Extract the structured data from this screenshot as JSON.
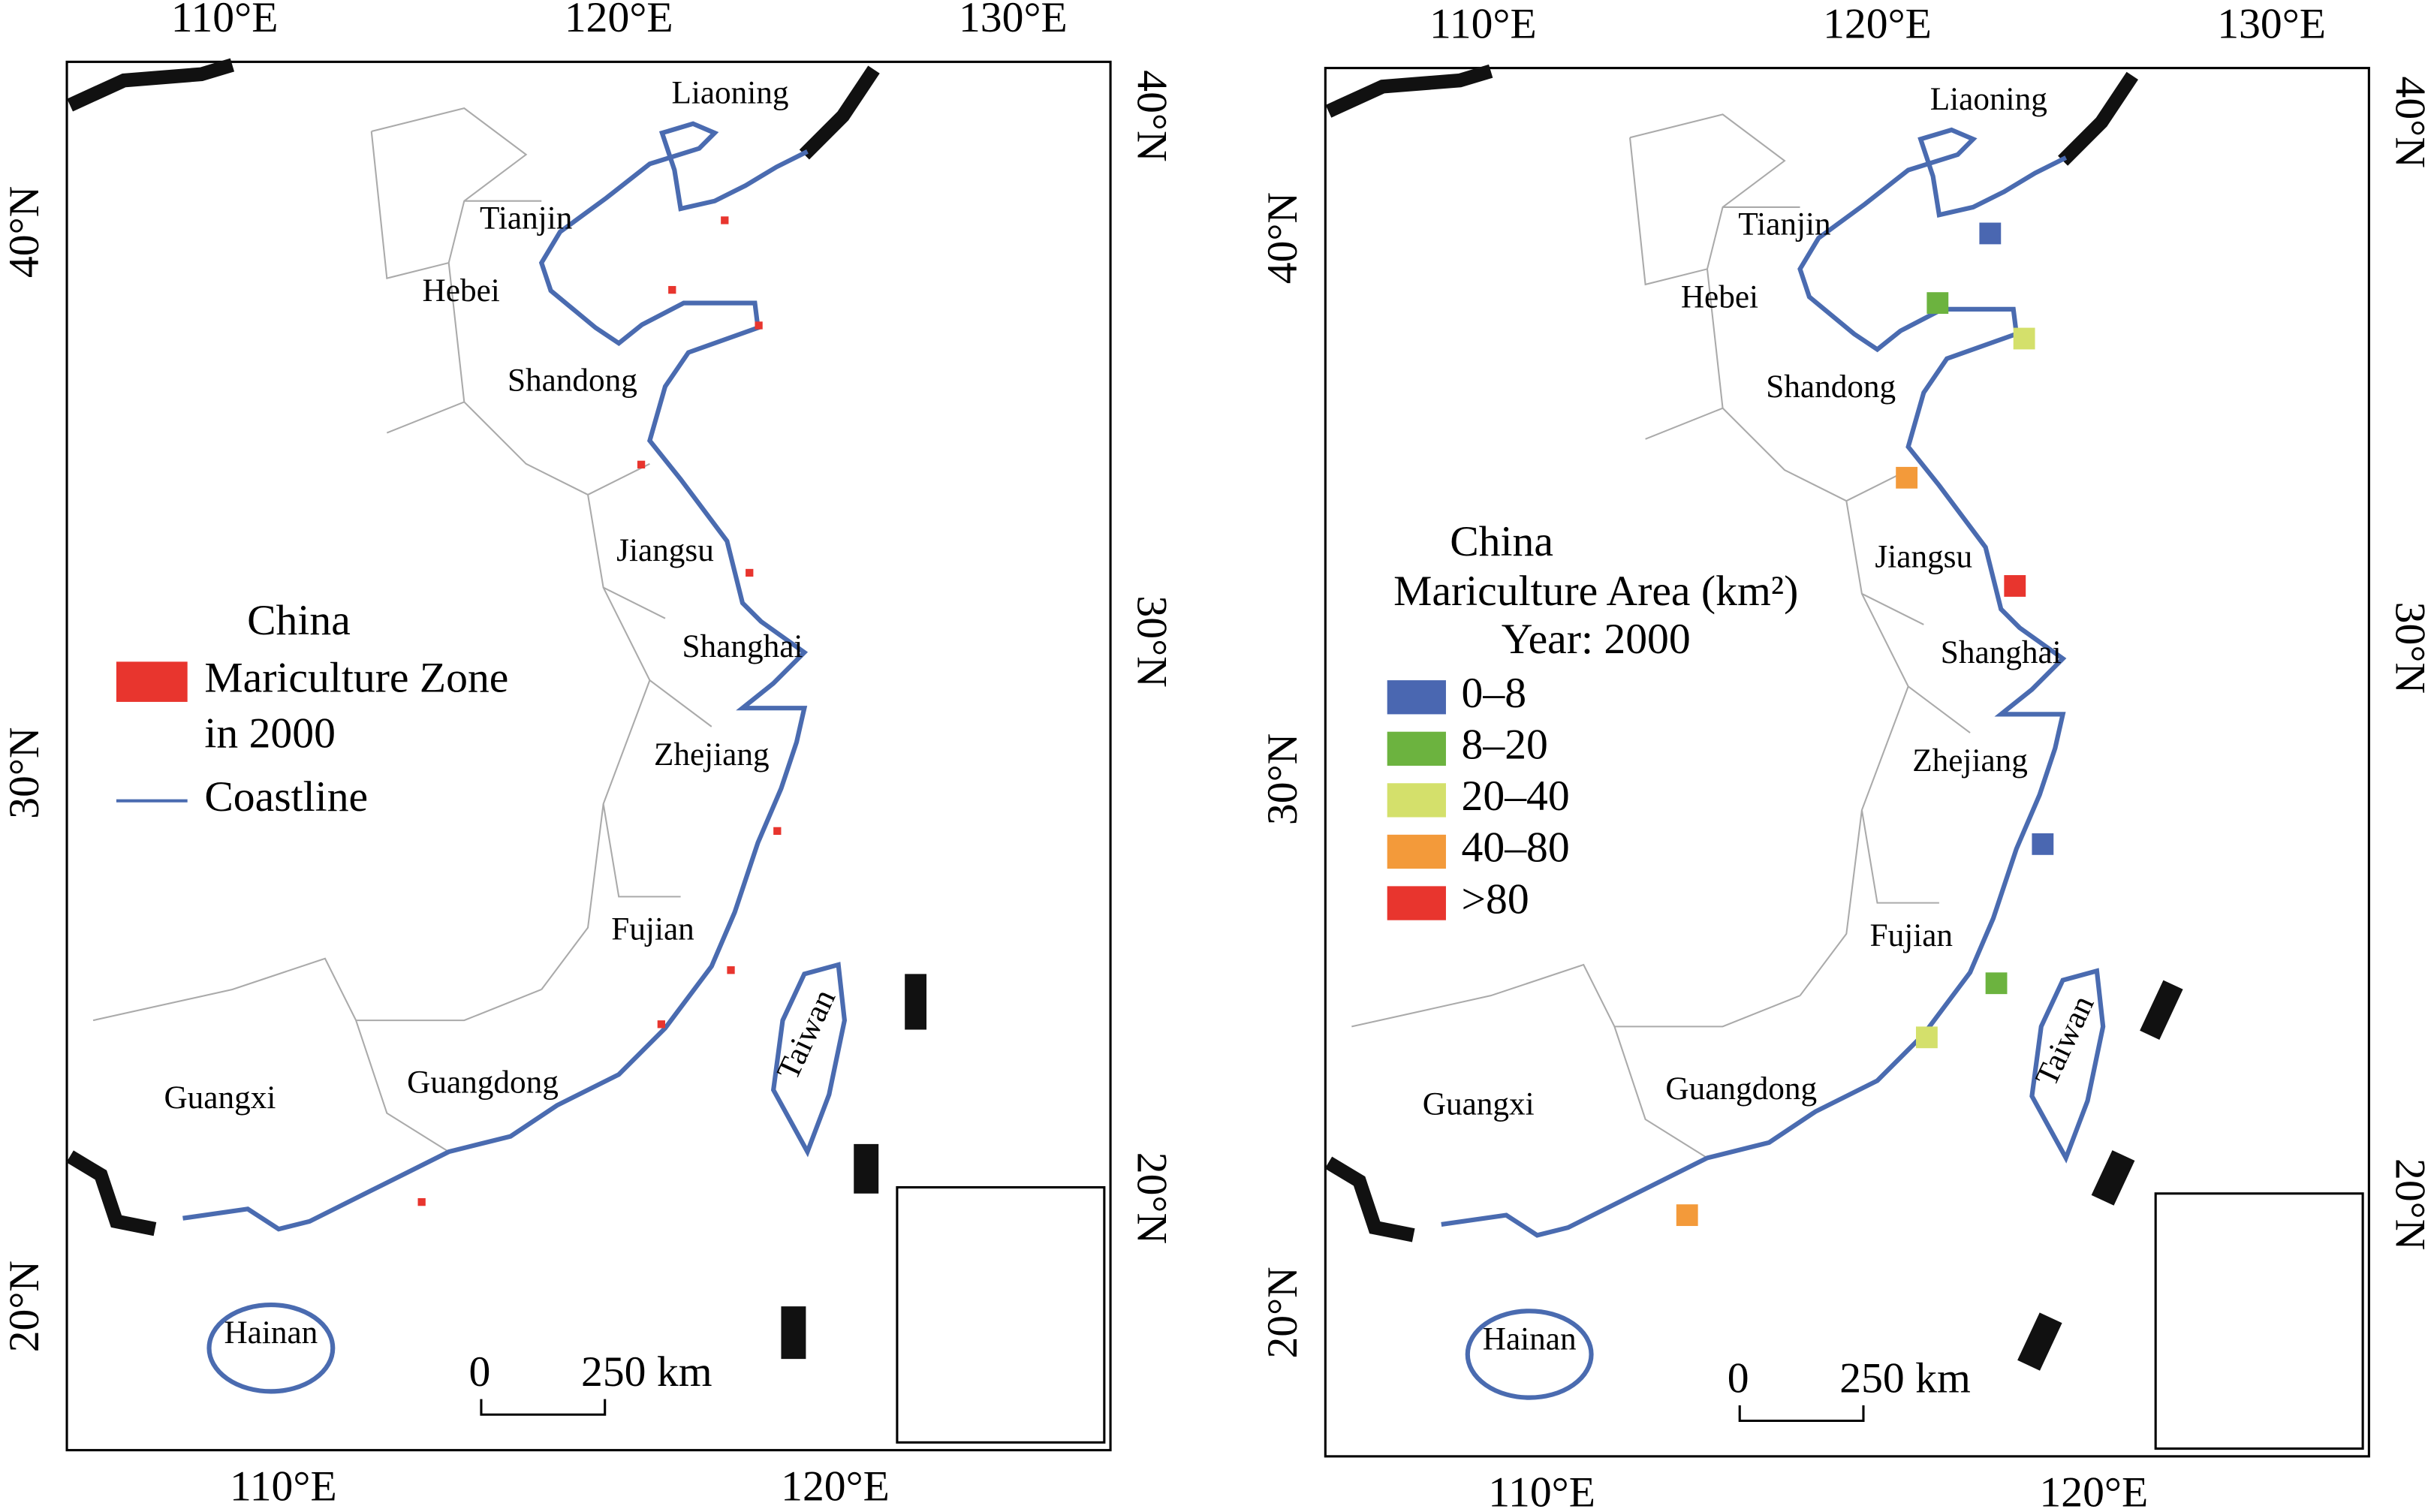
{
  "maps": [
    {
      "top_lon_labels": [
        "110°E",
        "120°E",
        "130°E"
      ],
      "bottom_lon_labels": [
        "110°E",
        "120°E"
      ],
      "left_lat_labels": [
        "40°N",
        "30°N",
        "20°N"
      ],
      "right_lat_labels": [
        "40°N",
        "30°N",
        "20°N"
      ],
      "provinces": [
        "Liaoning",
        "Tianjin",
        "Hebei",
        "Shandong",
        "Jiangsu",
        "Shanghai",
        "Zhejiang",
        "Fujian",
        "Guangxi",
        "Guangdong",
        "Hainan",
        "Taiwan"
      ],
      "legend": {
        "title": "China",
        "items": [
          {
            "lines": [
              "Mariculture Zone",
              "in 2000"
            ],
            "color": "#e8352e"
          },
          {
            "lines": [
              "Coastline"
            ],
            "color": "#4a6bb0"
          }
        ]
      },
      "scale_bar": {
        "start": "0",
        "end": "250 km"
      }
    },
    {
      "top_lon_labels": [
        "110°E",
        "120°E",
        "130°E"
      ],
      "bottom_lon_labels": [
        "110°E",
        "120°E"
      ],
      "left_lat_labels": [
        "40°N",
        "30°N",
        "20°N"
      ],
      "right_lat_labels": [
        "40°N",
        "30°N",
        "20°N"
      ],
      "provinces": [
        "Liaoning",
        "Tianjin",
        "Hebei",
        "Shandong",
        "Jiangsu",
        "Shanghai",
        "Zhejiang",
        "Fujian",
        "Guangxi",
        "Guangdong",
        "Hainan",
        "Taiwan"
      ],
      "legend": {
        "title": "China",
        "subtitle": "Mariculture Area (km²)",
        "year": "Year: 2000",
        "items": [
          {
            "lines": [
              "0–8"
            ],
            "color": "#4a67b1"
          },
          {
            "lines": [
              "8–20"
            ],
            "color": "#6cb33f"
          },
          {
            "lines": [
              "20–40"
            ],
            "color": "#d4e06b"
          },
          {
            "lines": [
              "40–80"
            ],
            "color": "#f39a3a"
          },
          {
            "lines": [
              ">80"
            ],
            "color": "#e8352e"
          }
        ]
      },
      "scale_bar": {
        "start": "0",
        "end": "250 km"
      }
    }
  ]
}
